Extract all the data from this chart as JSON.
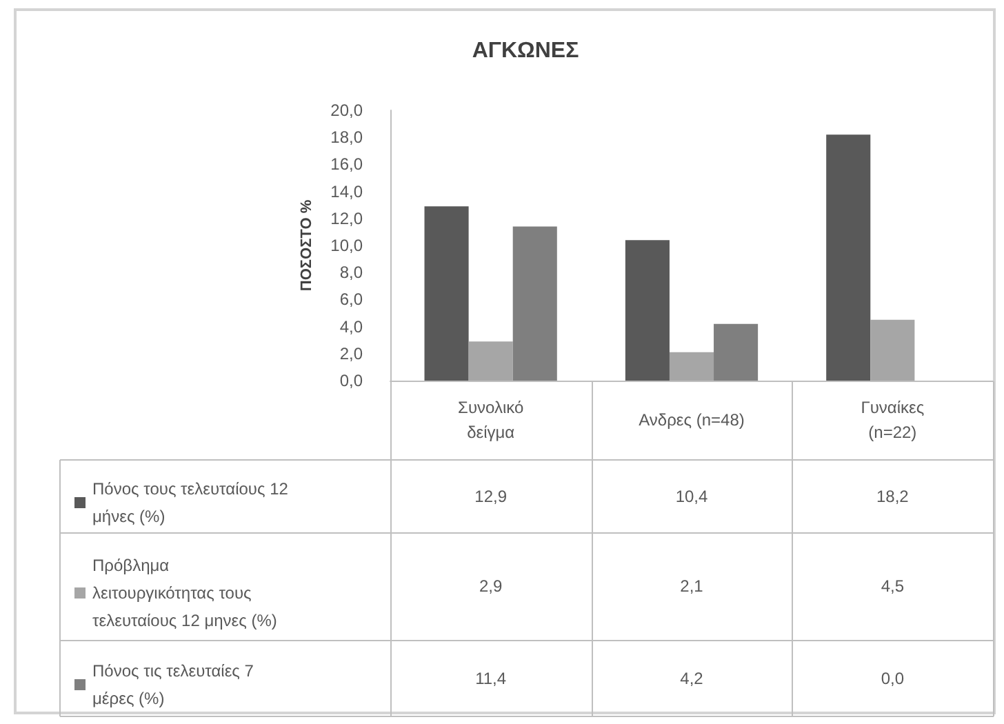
{
  "chart_data": {
    "type": "bar",
    "title": "ΑΓΚΩΝΕΣ",
    "ylabel": "ΠΟΣΟΣΤΟ %",
    "categories": [
      "Συνολικό δείγμα",
      "Ανδρες (n=48)",
      "Γυναίκες (n=22)"
    ],
    "series": [
      {
        "name": "Πόνος τους τελευταίους 12 μήνες (%)",
        "color": "#595959",
        "values": [
          12.9,
          10.4,
          18.2
        ],
        "value_labels": [
          "12,9",
          "10,4",
          "18,2"
        ]
      },
      {
        "name": "Πρόβλημα λειτουργικότητας τους τελευταίους 12 μηνες (%)",
        "color": "#a6a6a6",
        "values": [
          2.9,
          2.1,
          4.5
        ],
        "value_labels": [
          "2,9",
          "2,1",
          "4,5"
        ]
      },
      {
        "name": "Πόνος τις τελευταίες 7 μέρες (%)",
        "color": "#7f7f7f",
        "values": [
          11.4,
          4.2,
          0.0
        ],
        "value_labels": [
          "11,4",
          "4,2",
          "0,0"
        ]
      }
    ],
    "ylim": [
      0,
      20
    ],
    "yticks": [
      {
        "value": 0,
        "label": "0,0"
      },
      {
        "value": 2,
        "label": "2,0"
      },
      {
        "value": 4,
        "label": "4,0"
      },
      {
        "value": 6,
        "label": "6,0"
      },
      {
        "value": 8,
        "label": "8,0"
      },
      {
        "value": 10,
        "label": "10,0"
      },
      {
        "value": 12,
        "label": "12,0"
      },
      {
        "value": 14,
        "label": "14,0"
      },
      {
        "value": 16,
        "label": "16,0"
      },
      {
        "value": 18,
        "label": "18,0"
      },
      {
        "value": 20,
        "label": "20,0"
      }
    ],
    "grid": false,
    "legend": "bottom left"
  }
}
